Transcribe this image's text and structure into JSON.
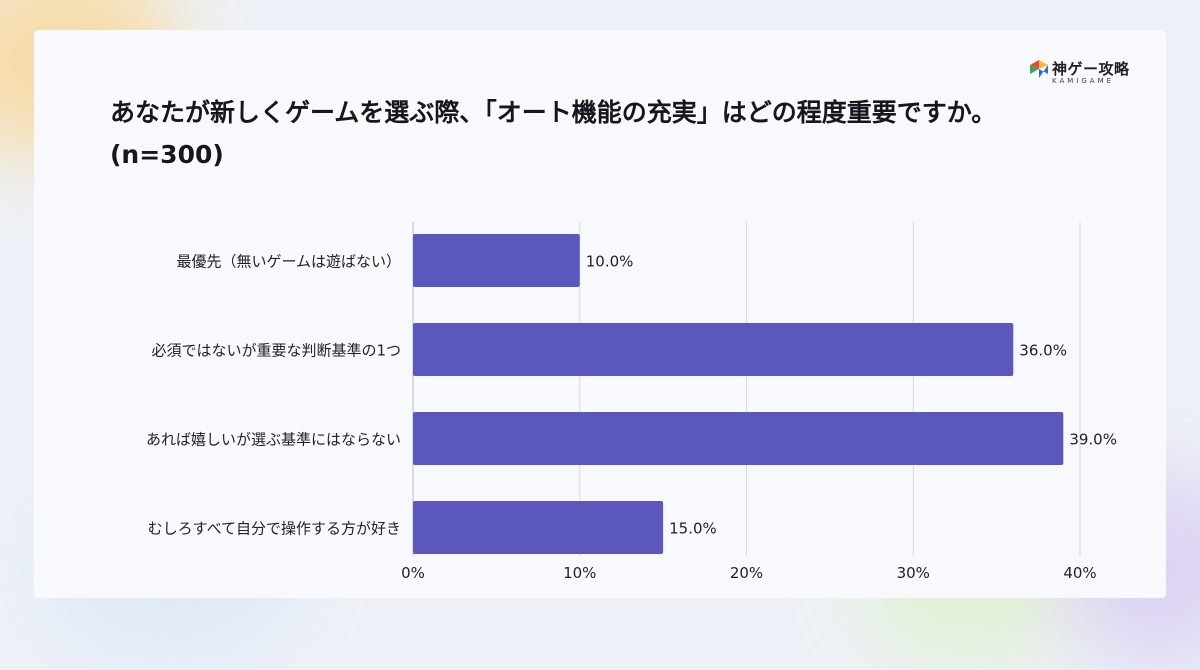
{
  "brand": {
    "name": "神ゲー攻略",
    "sub": "KAMIGAME",
    "mark_colors": [
      "#e8473c",
      "#f6b93b",
      "#3aa65a",
      "#2f6fd0"
    ]
  },
  "colors": {
    "bar": "#5b57bd",
    "grid": "#d6dae6",
    "text": "#1f1f2b"
  },
  "chart_data": {
    "type": "bar",
    "orientation": "horizontal",
    "title": "あなたが新しくゲームを選ぶ際、「オート機能の充実」はどの程度重要ですか。(n=300)",
    "categories": [
      "最優先（無いゲームは遊ばない）",
      "必須ではないが重要な判断基準の1つ",
      "あれば嬉しいが選ぶ基準にはならない",
      "むしろすべて自分で操作する方が好き"
    ],
    "values": [
      10.0,
      36.0,
      39.0,
      15.0
    ],
    "value_labels": [
      "10.0%",
      "36.0%",
      "39.0%",
      "15.0%"
    ],
    "x_ticks": [
      "0%",
      "10%",
      "20%",
      "30%",
      "40%"
    ],
    "xlim": [
      0,
      40
    ],
    "grid": true,
    "legend": "none"
  }
}
